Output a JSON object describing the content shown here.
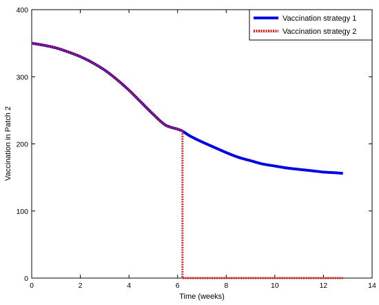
{
  "chart_data": {
    "type": "line",
    "title": "",
    "xlabel": "Time (weeks)",
    "ylabel": "Vaccination in Patch 2",
    "xlim": [
      0,
      14
    ],
    "ylim": [
      0,
      400
    ],
    "xticks": [
      "0",
      "2",
      "4",
      "6",
      "8",
      "10",
      "12",
      "14"
    ],
    "yticks": [
      "0",
      "100",
      "200",
      "300",
      "400"
    ],
    "grid": false,
    "legend_position": "top-right",
    "series": [
      {
        "name": "Vaccination strategy 1",
        "color": "#0000e6",
        "style": "solid",
        "x": [
          0,
          0.5,
          1,
          1.5,
          2,
          2.5,
          3,
          3.5,
          4,
          4.5,
          5,
          5.5,
          6,
          6.2,
          6.5,
          7,
          7.5,
          8,
          8.5,
          9,
          9.5,
          10,
          10.5,
          11,
          11.5,
          12,
          12.5,
          12.8
        ],
        "y": [
          350,
          347,
          343,
          337,
          330,
          321,
          310,
          296,
          280,
          262,
          244,
          228,
          222,
          219,
          212,
          203,
          195,
          187,
          180,
          175,
          170,
          167,
          164,
          162,
          160,
          158,
          157,
          156
        ]
      },
      {
        "name": "Vaccination strategy 2",
        "color": "#e61a1a",
        "style": "dotted",
        "x": [
          0,
          0.5,
          1,
          1.5,
          2,
          2.5,
          3,
          3.5,
          4,
          4.5,
          5,
          5.5,
          6,
          6.2,
          6.2,
          7,
          8,
          9,
          10,
          11,
          12,
          12.8
        ],
        "y": [
          350,
          347,
          343,
          337,
          330,
          321,
          310,
          296,
          280,
          262,
          244,
          228,
          222,
          219,
          0,
          0,
          0,
          0,
          0,
          0,
          0,
          0
        ]
      }
    ]
  }
}
